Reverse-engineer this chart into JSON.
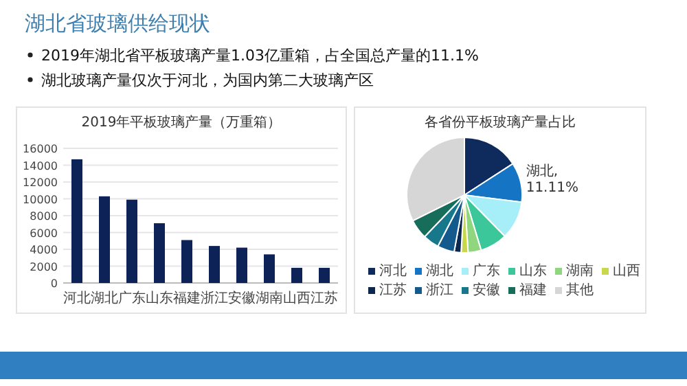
{
  "chart_data": [
    {
      "type": "other",
      "title": "湖北省玻璃供给现状",
      "annotations": [
        "2019年湖北省平板玻璃产量1.03亿重箱，占全国总产量的11.1%",
        "湖北玻璃产量仅次于河北，为国内第二大玻璃产区"
      ]
    },
    {
      "type": "bar",
      "title": "2019年平板玻璃产量（万重箱）",
      "categories": [
        "河北",
        "湖北",
        "广东",
        "山东",
        "福建",
        "浙江",
        "安徽",
        "湖南",
        "山西",
        "江苏"
      ],
      "values": [
        14700,
        10300,
        9900,
        7100,
        5100,
        4400,
        4200,
        3400,
        1800,
        1800
      ],
      "color": "#0d2257",
      "ylim": [
        0,
        16000
      ],
      "yticks": [
        0,
        2000,
        4000,
        6000,
        8000,
        10000,
        12000,
        14000,
        16000
      ],
      "grid": "y"
    },
    {
      "type": "pie",
      "title": "各省份平板玻璃产量占比",
      "categories": [
        "河北",
        "湖北",
        "广东",
        "山东",
        "湖南",
        "山西",
        "江苏",
        "浙江",
        "安徽",
        "福建",
        "其他"
      ],
      "values": [
        15.86,
        11.11,
        10.68,
        7.66,
        3.67,
        1.94,
        1.94,
        4.75,
        4.53,
        5.5,
        32.36
      ],
      "colors": [
        "#0f2a5c",
        "#1574c4",
        "#a6eef8",
        "#3cc79a",
        "#8fd67e",
        "#c8d84a",
        "#0d2850",
        "#145a8c",
        "#16788a",
        "#166e5a",
        "#d6d6d6"
      ],
      "value_labels": [
        null,
        "湖北, 11.11%",
        null,
        null,
        null,
        null,
        null,
        null,
        null,
        null,
        null
      ],
      "legend": "bottom"
    }
  ]
}
